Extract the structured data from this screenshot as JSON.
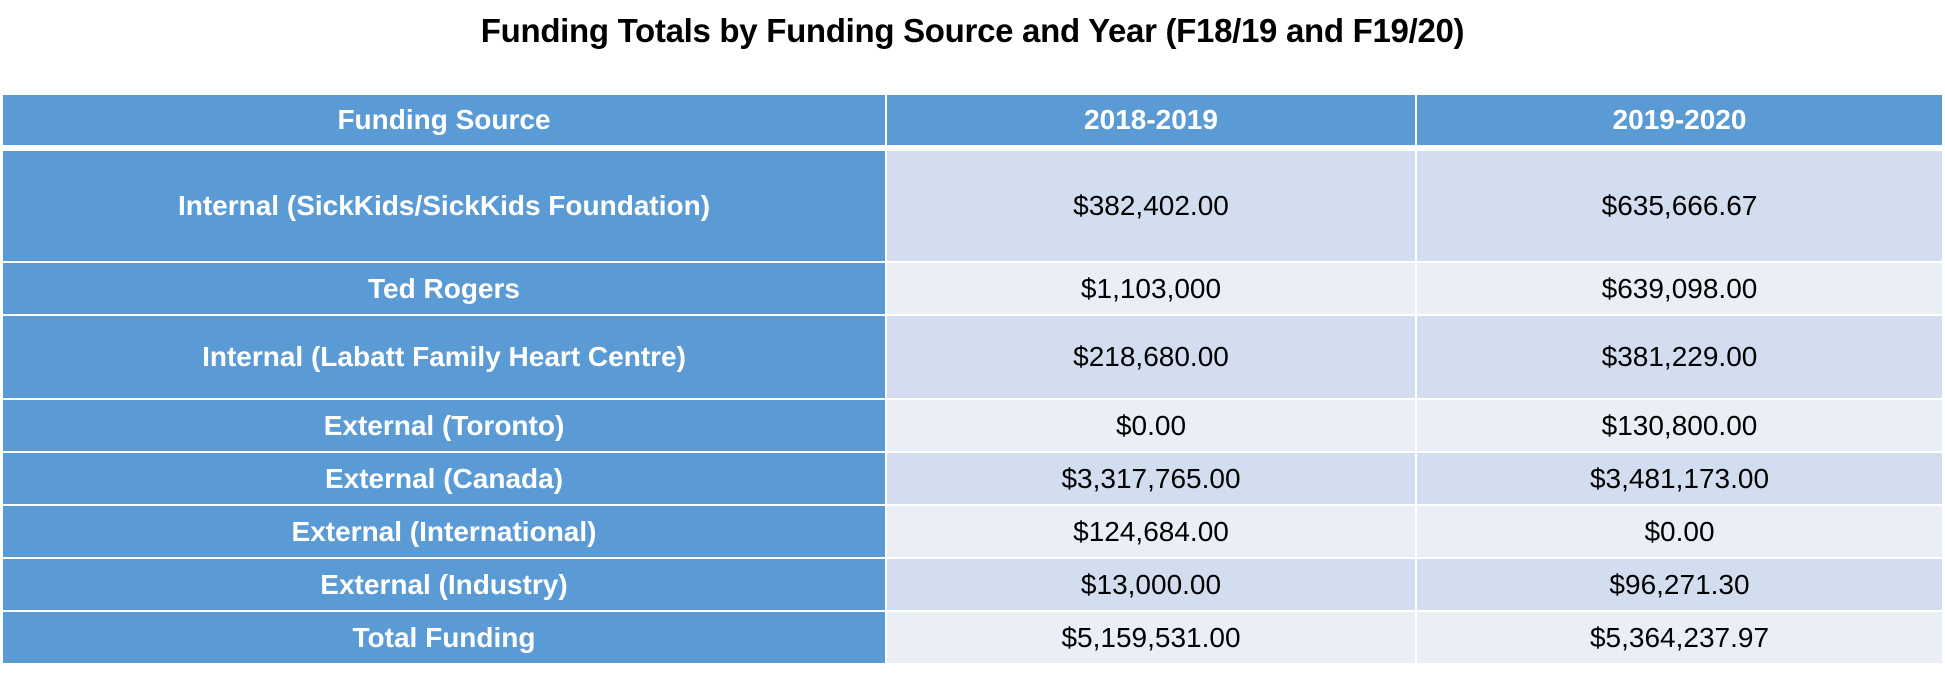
{
  "title": "Funding Totals by Funding Source and Year (F18/19 and F19/20)",
  "table": {
    "headers": [
      "Funding Source",
      "2018-2019",
      "2019-2020"
    ],
    "rows": [
      {
        "source": "Internal (SickKids/SickKids Foundation)",
        "y2018_2019": "$382,402.00",
        "y2019_2020": "$635,666.67"
      },
      {
        "source": "Ted Rogers",
        "y2018_2019": "$1,103,000",
        "y2019_2020": "$639,098.00"
      },
      {
        "source": "Internal (Labatt Family Heart Centre)",
        "y2018_2019": "$218,680.00",
        "y2019_2020": "$381,229.00"
      },
      {
        "source": "External (Toronto)",
        "y2018_2019": "$0.00",
        "y2019_2020": "$130,800.00"
      },
      {
        "source": "External (Canada)",
        "y2018_2019": "$3,317,765.00",
        "y2019_2020": "$3,481,173.00"
      },
      {
        "source": "External (International)",
        "y2018_2019": "$124,684.00",
        "y2019_2020": "$0.00"
      },
      {
        "source": "External (Industry)",
        "y2018_2019": "$13,000.00",
        "y2019_2020": "$96,271.30"
      },
      {
        "source": "Total Funding",
        "y2018_2019": "$5,159,531.00",
        "y2019_2020": "$5,364,237.97"
      }
    ]
  },
  "colors": {
    "header_fill": "#5b9bd5",
    "band_dark": "#d2deef",
    "band_light": "#eaeff7",
    "header_text": "#ffffff"
  }
}
